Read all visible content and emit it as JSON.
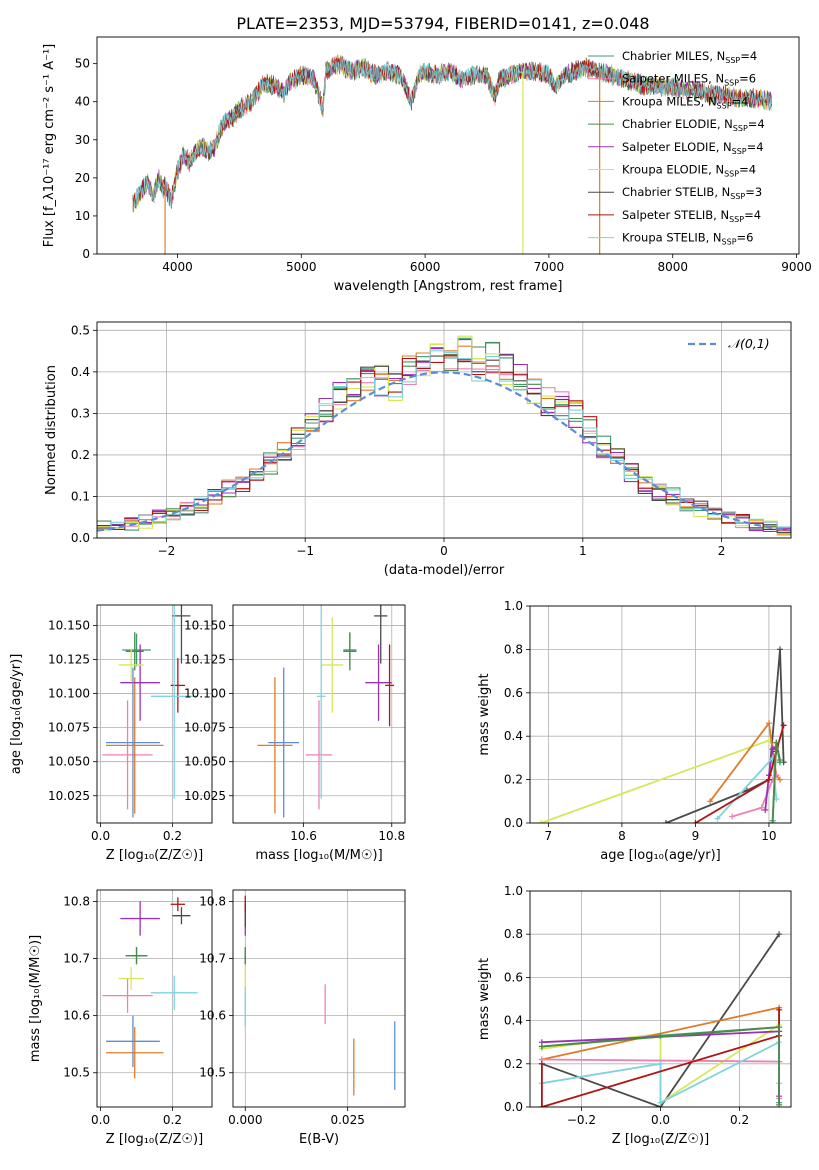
{
  "title": "PLATE=2353, MJD=53794, FIBERID=0141, z=0.048",
  "colors": {
    "chabrier_miles": "#3d9970",
    "salpeter_miles": "#ec82b4",
    "kroupa_miles": "#e07b2a",
    "chabrier_elodie": "#4a8a4a",
    "salpeter_elodie": "#9b30b4",
    "kroupa_elodie": "#d6e85a",
    "chabrier_stelib": "#4a4a4a",
    "salpeter_stelib": "#b01414",
    "kroupa_stelib": "#7fd3dd",
    "normal_curve": "#5b8dd8",
    "grid": "#b0b0b0"
  },
  "chart_data": [
    {
      "id": "spectrum",
      "type": "line",
      "xlabel": "wavelength [Angstrom, rest frame]",
      "ylabel": "Flux [f_λ10⁻¹⁷ erg cm⁻² s⁻¹ A⁻¹]",
      "xlim": [
        3350,
        9020
      ],
      "ylim": [
        0,
        57
      ],
      "xticks": [
        "4000",
        "5000",
        "6000",
        "7000",
        "8000",
        "9000"
      ],
      "yticks": [
        "0",
        "10",
        "20",
        "30",
        "40",
        "50"
      ],
      "envelope": {
        "x": [
          3640,
          3700,
          3760,
          3800,
          3850,
          3880,
          3900,
          3950,
          4000,
          4050,
          4100,
          4150,
          4200,
          4250,
          4300,
          4350,
          4400,
          4450,
          4500,
          4600,
          4700,
          4800,
          4861,
          4900,
          5000,
          5100,
          5175,
          5200,
          5300,
          5400,
          5500,
          5600,
          5700,
          5800,
          5890,
          5950,
          6000,
          6100,
          6200,
          6300,
          6400,
          6500,
          6563,
          6600,
          6700,
          6800,
          6900,
          7000,
          7050,
          7100,
          7200,
          7300,
          7400,
          7500,
          7600,
          7700,
          7800,
          7900,
          8000,
          8100,
          8200,
          8300,
          8400,
          8500,
          8600,
          8700,
          8800
        ],
        "y": [
          13,
          16,
          19,
          15,
          20,
          17,
          18,
          14,
          22,
          26,
          24,
          27,
          28,
          27,
          28,
          33,
          35,
          36,
          38,
          40,
          45,
          44,
          42,
          45,
          47,
          46,
          38,
          48,
          50,
          48,
          49,
          47,
          48,
          47,
          40,
          47,
          48,
          47,
          48,
          46,
          47,
          47,
          41,
          46,
          47,
          48,
          48,
          47,
          44,
          46,
          48,
          49,
          48,
          47,
          46,
          45,
          44,
          44,
          44,
          43,
          43,
          42,
          42,
          41,
          41,
          41,
          40
        ]
      },
      "series": [
        {
          "name": "Chabrier MILES, N_SSP=4",
          "label": "Chabrier MILES, N",
          "nssp": "=4",
          "color_key": "chabrier_miles"
        },
        {
          "name": "Salpeter MILES, N_SSP=6",
          "label": "Salpeter MILES, N",
          "nssp": "=6",
          "color_key": "salpeter_miles"
        },
        {
          "name": "Kroupa MILES, N_SSP=4",
          "label": "Kroupa MILES, N",
          "nssp": "=4",
          "color_key": "kroupa_miles"
        },
        {
          "name": "Chabrier ELODIE, N_SSP=4",
          "label": "Chabrier ELODIE, N",
          "nssp": "=4",
          "color_key": "chabrier_elodie"
        },
        {
          "name": "Salpeter ELODIE, N_SSP=4",
          "label": "Salpeter ELODIE, N",
          "nssp": "=4",
          "color_key": "salpeter_elodie"
        },
        {
          "name": "Kroupa ELODIE, N_SSP=4",
          "label": "Kroupa ELODIE, N",
          "nssp": "=4",
          "color_key": "kroupa_elodie"
        },
        {
          "name": "Chabrier STELIB, N_SSP=3",
          "label": "Chabrier STELIB, N",
          "nssp": "=3",
          "color_key": "chabrier_stelib"
        },
        {
          "name": "Salpeter STELIB, N_SSP=4",
          "label": "Salpeter STELIB, N",
          "nssp": "=4",
          "color_key": "salpeter_stelib"
        },
        {
          "name": "Kroupa STELIB, N_SSP=6",
          "label": "Kroupa STELIB, N",
          "nssp": "=6",
          "color_key": "kroupa_stelib"
        }
      ],
      "drops": [
        {
          "x": 3900,
          "color_key": "kroupa_miles"
        },
        {
          "x": 6790,
          "color_key": "kroupa_elodie"
        },
        {
          "x": 7410,
          "color_key": "kroupa_miles"
        }
      ],
      "legend": "right",
      "legend_sub": "SSP"
    },
    {
      "id": "residuals",
      "type": "step",
      "xlabel": "(data-model)/error",
      "ylabel": "Normed distribution",
      "xlim": [
        -2.5,
        2.5
      ],
      "ylim": [
        0,
        0.52
      ],
      "xticks": [
        "−2",
        "−1",
        "0",
        "1",
        "2"
      ],
      "yticks": [
        "0.0",
        "0.1",
        "0.2",
        "0.3",
        "0.4",
        "0.5"
      ],
      "bin_width": 0.1,
      "series_base": {
        "x": [
          -2.45,
          -2.35,
          -2.25,
          -2.15,
          -2.05,
          -1.95,
          -1.85,
          -1.75,
          -1.65,
          -1.55,
          -1.45,
          -1.35,
          -1.25,
          -1.15,
          -1.05,
          -0.95,
          -0.85,
          -0.75,
          -0.65,
          -0.55,
          -0.45,
          -0.35,
          -0.25,
          -0.15,
          -0.05,
          0.05,
          0.15,
          0.25,
          0.35,
          0.45,
          0.55,
          0.65,
          0.75,
          0.85,
          0.95,
          1.05,
          1.15,
          1.25,
          1.35,
          1.45,
          1.55,
          1.65,
          1.75,
          1.85,
          1.95,
          2.05,
          2.15,
          2.25,
          2.35,
          2.45
        ],
        "y": [
          0.025,
          0.03,
          0.035,
          0.04,
          0.05,
          0.06,
          0.07,
          0.08,
          0.1,
          0.12,
          0.13,
          0.15,
          0.18,
          0.21,
          0.24,
          0.27,
          0.31,
          0.34,
          0.36,
          0.38,
          0.38,
          0.37,
          0.4,
          0.41,
          0.44,
          0.43,
          0.45,
          0.42,
          0.43,
          0.41,
          0.38,
          0.35,
          0.33,
          0.32,
          0.3,
          0.26,
          0.22,
          0.19,
          0.16,
          0.13,
          0.11,
          0.1,
          0.08,
          0.07,
          0.06,
          0.05,
          0.04,
          0.03,
          0.025,
          0.02
        ]
      },
      "normal": {
        "name": "𝒩(0,1)",
        "mu": 0,
        "sigma": 1
      }
    },
    {
      "id": "age_vs_Z",
      "type": "scatter",
      "xlabel": "Z [log₁₀(Z/Z☉)]",
      "ylabel": "age  [log₁₀(age/yr)]",
      "xlim": [
        -0.01,
        0.31
      ],
      "ylim": [
        10.005,
        10.165
      ],
      "xticks": [
        "0.0",
        "0.2"
      ],
      "yticks": [
        "10.025",
        "10.050",
        "10.075",
        "10.100",
        "10.125",
        "10.150"
      ],
      "points": [
        {
          "c": "chabrier_miles",
          "x": 0.1,
          "xe": 0.04,
          "y": 10.132,
          "ye": 0.012
        },
        {
          "c": "salpeter_miles",
          "x": 0.075,
          "xe": 0.07,
          "y": 10.055,
          "ye": 0.04
        },
        {
          "c": "kroupa_miles",
          "x": 0.095,
          "xe": 0.08,
          "y": 10.062,
          "ye": 0.05
        },
        {
          "c": "chabrier_elodie",
          "x": 0.095,
          "xe": 0.025,
          "y": 10.131,
          "ye": 0.014
        },
        {
          "c": "salpeter_elodie",
          "x": 0.11,
          "xe": 0.055,
          "y": 10.108,
          "ye": 0.028
        },
        {
          "c": "kroupa_elodie",
          "x": 0.085,
          "xe": 0.035,
          "y": 10.121,
          "ye": 0.012
        },
        {
          "c": "chabrier_stelib",
          "x": 0.225,
          "xe": 0.025,
          "y": 10.157,
          "ye": 0.035
        },
        {
          "c": "salpeter_stelib",
          "x": 0.215,
          "xe": 0.02,
          "y": 10.106,
          "ye": 0.02
        },
        {
          "c": "kroupa_stelib",
          "x": 0.205,
          "xe": 0.065,
          "y": 10.098,
          "ye": 0.075
        },
        {
          "c": "normal_curve",
          "x": 0.09,
          "xe": 0.075,
          "y": 10.064,
          "ye": 0.055
        }
      ]
    },
    {
      "id": "age_vs_mass",
      "type": "scatter",
      "xlabel": "mass [log₁₀(M/M☉)]",
      "ylabel": "",
      "xlim": [
        10.44,
        10.83
      ],
      "ylim": [
        10.005,
        10.165
      ],
      "xticks": [
        "10.6",
        "10.8"
      ],
      "yticks": [
        "10.025",
        "10.050",
        "10.075",
        "10.100",
        "10.125",
        "10.150"
      ],
      "points": [
        {
          "c": "chabrier_miles",
          "x": 10.705,
          "xe": 0.015,
          "y": 10.132,
          "ye": 0.012
        },
        {
          "c": "salpeter_miles",
          "x": 10.635,
          "xe": 0.03,
          "y": 10.055,
          "ye": 0.04
        },
        {
          "c": "kroupa_miles",
          "x": 10.535,
          "xe": 0.04,
          "y": 10.062,
          "ye": 0.05
        },
        {
          "c": "chabrier_elodie",
          "x": 10.705,
          "xe": 0.015,
          "y": 10.131,
          "ye": 0.014
        },
        {
          "c": "salpeter_elodie",
          "x": 10.77,
          "xe": 0.03,
          "y": 10.108,
          "ye": 0.028
        },
        {
          "c": "kroupa_elodie",
          "x": 10.665,
          "xe": 0.025,
          "y": 10.121,
          "ye": 0.035
        },
        {
          "c": "chabrier_stelib",
          "x": 10.775,
          "xe": 0.015,
          "y": 10.157,
          "ye": 0.035
        },
        {
          "c": "salpeter_stelib",
          "x": 10.795,
          "xe": 0.01,
          "y": 10.106,
          "ye": 0.03
        },
        {
          "c": "kroupa_stelib",
          "x": 10.64,
          "xe": 0.01,
          "y": 10.098,
          "ye": 0.075
        },
        {
          "c": "normal_curve",
          "x": 10.555,
          "xe": 0.035,
          "y": 10.064,
          "ye": 0.055
        }
      ]
    },
    {
      "id": "weight_vs_age",
      "type": "line",
      "xlabel": "age  [log₁₀(age/yr)]",
      "ylabel": "mass weight",
      "xlim": [
        6.75,
        10.3
      ],
      "ylim": [
        0,
        1.0
      ],
      "xticks": [
        "7",
        "8",
        "9",
        "10"
      ],
      "yticks": [
        "0.0",
        "0.2",
        "0.4",
        "0.6",
        "0.8",
        "1.0"
      ],
      "series": [
        {
          "c": "chabrier_stelib",
          "x": [
            8.6,
            9.7,
            10.0,
            10.15,
            10.2
          ],
          "y": [
            0.0,
            0.15,
            0.2,
            0.8,
            0.28
          ]
        },
        {
          "c": "kroupa_elodie",
          "x": [
            6.9,
            10.0,
            10.1,
            10.15
          ],
          "y": [
            0.0,
            0.38,
            0.34,
            0.28
          ]
        },
        {
          "c": "kroupa_miles",
          "x": [
            9.2,
            10.0,
            10.1,
            10.15
          ],
          "y": [
            0.1,
            0.46,
            0.22,
            0.2
          ]
        },
        {
          "c": "salpeter_miles",
          "x": [
            9.5,
            9.9,
            10.05,
            10.1
          ],
          "y": [
            0.03,
            0.07,
            0.2,
            0.22
          ]
        },
        {
          "c": "chabrier_miles",
          "x": [
            10.05,
            10.1,
            10.15
          ],
          "y": [
            0.01,
            0.37,
            0.28
          ]
        },
        {
          "c": "salpeter_elodie",
          "x": [
            9.95,
            10.0,
            10.05,
            10.1
          ],
          "y": [
            0.06,
            0.22,
            0.34,
            0.35
          ]
        },
        {
          "c": "kroupa_stelib",
          "x": [
            9.3,
            10.05,
            10.1
          ],
          "y": [
            0.02,
            0.3,
            0.11
          ]
        },
        {
          "c": "salpeter_stelib",
          "x": [
            9.0,
            10.0,
            10.1,
            10.2
          ],
          "y": [
            0.0,
            0.2,
            0.33,
            0.45
          ]
        },
        {
          "c": "chabrier_elodie",
          "x": [
            10.05,
            10.1,
            10.15
          ],
          "y": [
            0.0,
            0.37,
            0.29
          ]
        }
      ]
    },
    {
      "id": "mass_vs_Z",
      "type": "scatter",
      "xlabel": "Z [log₁₀(Z/Z☉)]",
      "ylabel": "mass [log₁₀(M/M☉)]",
      "xlim": [
        -0.01,
        0.31
      ],
      "ylim": [
        10.44,
        10.82
      ],
      "xticks": [
        "0.0",
        "0.2"
      ],
      "yticks": [
        "10.5",
        "10.6",
        "10.7",
        "10.8"
      ],
      "points": [
        {
          "c": "chabrier_miles",
          "x": 0.1,
          "xe": 0.03,
          "y": 10.705,
          "ye": 0.015
        },
        {
          "c": "salpeter_miles",
          "x": 0.075,
          "xe": 0.07,
          "y": 10.635,
          "ye": 0.03
        },
        {
          "c": "kroupa_miles",
          "x": 0.095,
          "xe": 0.08,
          "y": 10.535,
          "ye": 0.045
        },
        {
          "c": "chabrier_elodie",
          "x": 0.1,
          "xe": 0.03,
          "y": 10.705,
          "ye": 0.015
        },
        {
          "c": "salpeter_elodie",
          "x": 0.11,
          "xe": 0.055,
          "y": 10.77,
          "ye": 0.03
        },
        {
          "c": "kroupa_elodie",
          "x": 0.085,
          "xe": 0.035,
          "y": 10.665,
          "ye": 0.02
        },
        {
          "c": "chabrier_stelib",
          "x": 0.225,
          "xe": 0.025,
          "y": 10.775,
          "ye": 0.015
        },
        {
          "c": "salpeter_stelib",
          "x": 0.215,
          "xe": 0.02,
          "y": 10.795,
          "ye": 0.012
        },
        {
          "c": "kroupa_stelib",
          "x": 0.205,
          "xe": 0.065,
          "y": 10.64,
          "ye": 0.03
        },
        {
          "c": "normal_curve",
          "x": 0.09,
          "xe": 0.075,
          "y": 10.555,
          "ye": 0.045
        }
      ]
    },
    {
      "id": "mass_vs_EBV",
      "type": "scatter",
      "xlabel": "E(B-V)",
      "ylabel": "",
      "xlim": [
        -0.003,
        0.039
      ],
      "ylim": [
        10.44,
        10.82
      ],
      "xticks": [
        "0.000",
        "0.025"
      ],
      "yticks": [
        "10.5",
        "10.6",
        "10.7",
        "10.8"
      ],
      "points": [
        {
          "c": "chabrier_miles",
          "x": 0.0,
          "xe": 0.0,
          "y": 10.705,
          "ye": 0.015
        },
        {
          "c": "salpeter_miles",
          "x": 0.0195,
          "xe": 0.0,
          "y": 10.62,
          "ye": 0.035
        },
        {
          "c": "kroupa_miles",
          "x": 0.0265,
          "xe": 0.0,
          "y": 10.51,
          "ye": 0.05
        },
        {
          "c": "chabrier_elodie",
          "x": 0.0,
          "xe": 0.0,
          "y": 10.705,
          "ye": 0.015
        },
        {
          "c": "salpeter_elodie",
          "x": 0.0,
          "xe": 0.0,
          "y": 10.77,
          "ye": 0.03
        },
        {
          "c": "kroupa_elodie",
          "x": 0.0,
          "xe": 0.0,
          "y": 10.665,
          "ye": 0.02
        },
        {
          "c": "chabrier_stelib",
          "x": 0.0,
          "xe": 0.0,
          "y": 10.775,
          "ye": 0.02
        },
        {
          "c": "salpeter_stelib",
          "x": 0.0,
          "xe": 0.0,
          "y": 10.795,
          "ye": 0.015
        },
        {
          "c": "kroupa_stelib",
          "x": 0.0,
          "xe": 0.0,
          "y": 10.615,
          "ye": 0.035
        },
        {
          "c": "normal_curve",
          "x": 0.0365,
          "xe": 0.0,
          "y": 10.53,
          "ye": 0.06
        }
      ]
    },
    {
      "id": "weight_vs_Z",
      "type": "line",
      "xlabel": "Z [log₁₀(Z/Z☉)]",
      "ylabel": "mass weight",
      "xlim": [
        -0.33,
        0.33
      ],
      "ylim": [
        0,
        1.0
      ],
      "xticks": [
        "−0.2",
        "0.0",
        "0.2"
      ],
      "yticks": [
        "0.0",
        "0.2",
        "0.4",
        "0.6",
        "0.8",
        "1.0"
      ],
      "series": [
        {
          "c": "chabrier_stelib",
          "x": [
            -0.3,
            0.0,
            0.3
          ],
          "y": [
            0.2,
            0.0,
            0.8
          ]
        },
        {
          "c": "kroupa_elodie",
          "x": [
            -0.3,
            0.0,
            0.0,
            0.3
          ],
          "y": [
            0.27,
            0.34,
            0.02,
            0.38
          ]
        },
        {
          "c": "kroupa_miles",
          "x": [
            -0.3,
            0.3,
            0.3
          ],
          "y": [
            0.22,
            0.46,
            0.21
          ]
        },
        {
          "c": "salpeter_miles",
          "x": [
            -0.3,
            0.3,
            0.3
          ],
          "y": [
            0.22,
            0.21,
            0.04
          ]
        },
        {
          "c": "chabrier_miles",
          "x": [
            -0.3,
            0.0,
            0.3,
            0.3
          ],
          "y": [
            0.28,
            0.33,
            0.37,
            0.02
          ]
        },
        {
          "c": "salpeter_elodie",
          "x": [
            -0.3,
            0.3,
            0.3
          ],
          "y": [
            0.3,
            0.35,
            0.05
          ]
        },
        {
          "c": "kroupa_stelib",
          "x": [
            -0.3,
            0.0,
            0.0,
            0.3,
            0.3
          ],
          "y": [
            0.11,
            0.2,
            0.02,
            0.3,
            0.11
          ]
        },
        {
          "c": "salpeter_stelib",
          "x": [
            -0.3,
            -0.3,
            0.3,
            0.3
          ],
          "y": [
            0.2,
            0.0,
            0.33,
            0.45
          ]
        },
        {
          "c": "chabrier_elodie",
          "x": [
            -0.3,
            0.3,
            0.3
          ],
          "y": [
            0.28,
            0.37,
            0.01
          ]
        }
      ]
    }
  ]
}
